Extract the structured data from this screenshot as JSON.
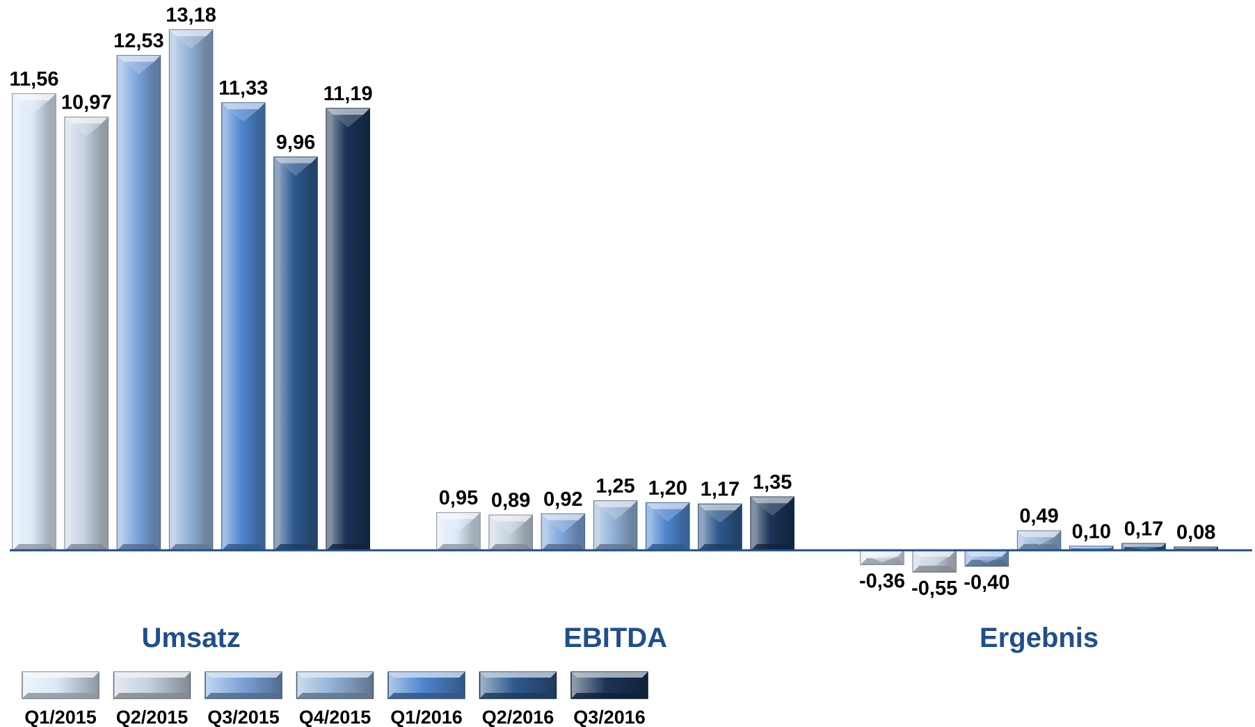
{
  "chart_data": {
    "type": "bar",
    "categories": [
      "Umsatz",
      "EBITDA",
      "Ergebnis"
    ],
    "series": [
      {
        "name": "Q1/2015",
        "values": [
          11.56,
          0.95,
          -0.36
        ],
        "labels": [
          "11,56",
          "0,95",
          "-0,36"
        ]
      },
      {
        "name": "Q2/2015",
        "values": [
          10.97,
          0.89,
          -0.55
        ],
        "labels": [
          "10,97",
          "0,89",
          "-0,55"
        ]
      },
      {
        "name": "Q3/2015",
        "values": [
          12.53,
          0.92,
          -0.4
        ],
        "labels": [
          "12,53",
          "0,92",
          "-0,40"
        ]
      },
      {
        "name": "Q4/2015",
        "values": [
          13.18,
          1.25,
          0.49
        ],
        "labels": [
          "13,18",
          "1,25",
          "0,49"
        ]
      },
      {
        "name": "Q1/2016",
        "values": [
          11.33,
          1.2,
          0.1
        ],
        "labels": [
          "11,33",
          "1,20",
          "0,10"
        ]
      },
      {
        "name": "Q2/2016",
        "values": [
          9.96,
          1.17,
          0.17
        ],
        "labels": [
          "9,96",
          "1,17",
          "0,17"
        ]
      },
      {
        "name": "Q3/2016",
        "values": [
          11.19,
          1.35,
          0.08
        ],
        "labels": [
          "11,19",
          "1,35",
          "0,08"
        ]
      }
    ],
    "title": "",
    "xlabel": "",
    "ylabel": "",
    "ylim": [
      -0.6,
      13.5
    ],
    "grid": false,
    "legend": "bottom-left",
    "colors": {
      "Q1/2015": "#dce9f7",
      "Q2/2015": "#c6d2e0",
      "Q3/2015": "#7ea6dc",
      "Q4/2015": "#93b2d8",
      "Q1/2016": "#4f86d0",
      "Q2/2016": "#2f5a8e",
      "Q3/2016": "#1a3458",
      "axis": "#1f4e8c",
      "group_label": "#1f4e8c"
    }
  }
}
